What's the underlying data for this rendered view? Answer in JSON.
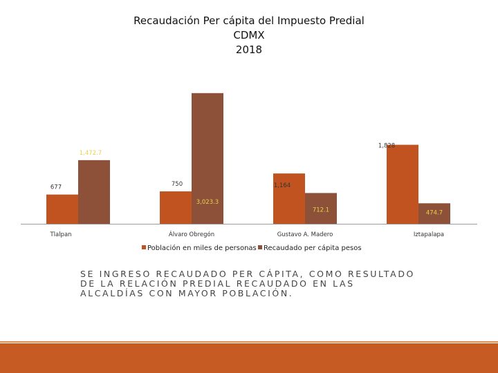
{
  "slide": {
    "title_lines": [
      "Recaudación Per cápita del Impuesto Predial",
      "CDMX",
      "2018"
    ],
    "caption_lines": [
      "SE INGRESO RECAUDADO PER CÁPITA, COMO RESULTADO",
      "DE LA RELACIÓN PREDIAL RECAUDADO EN LAS",
      "ALCALDÍAS CON MAYOR POBLACIÓN."
    ]
  },
  "colors": {
    "population": "#c0531f",
    "per_capita": "#8c5138",
    "footer": "#c65b24",
    "label_per_capita": "#e8d24a"
  },
  "chart_data": {
    "type": "bar",
    "title": "Recaudación Per cápita del Impuesto Predial CDMX 2018",
    "categories": [
      "Tlalpan",
      "Álvaro Obregón",
      "Gustavo A. Madero",
      "Iztapalapa"
    ],
    "series": [
      {
        "name": "Población en miles de personas",
        "values": [
          677,
          750,
          1164,
          1828
        ],
        "labels": [
          "677",
          "750",
          "1,164",
          "1,828"
        ]
      },
      {
        "name": "Recaudado per cápita pesos",
        "values": [
          1472.7,
          3023.3,
          712.1,
          474.7
        ],
        "labels": [
          "1,472.7",
          "3,023.3",
          "712.1",
          "474.7"
        ]
      }
    ],
    "ylim": [
      0,
      3100
    ],
    "grid": false,
    "legend": "bottom",
    "xlabel": "",
    "ylabel": ""
  }
}
